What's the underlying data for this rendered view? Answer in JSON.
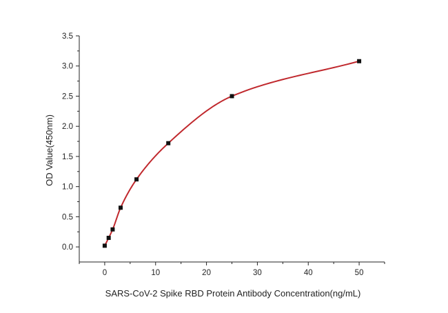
{
  "chart_data": {
    "type": "scatter",
    "xlabel": "SARS-CoV-2 Spike RBD Protein Antibody Concentration(ng/mL)",
    "ylabel": "OD Value(450nm)",
    "xlim": [
      -5,
      55
    ],
    "ylim": [
      -0.25,
      3.5
    ],
    "x_ticks": [
      0,
      10,
      20,
      30,
      40,
      50
    ],
    "y_ticks": [
      0.0,
      0.5,
      1.0,
      1.5,
      2.0,
      2.5,
      3.0,
      3.5
    ],
    "x_tick_labels": [
      "0",
      "10",
      "20",
      "30",
      "40",
      "50"
    ],
    "y_tick_labels": [
      "0.0",
      "0.5",
      "1.0",
      "1.5",
      "2.0",
      "2.5",
      "3.0",
      "3.5"
    ],
    "grid": false,
    "points": {
      "x": [
        0,
        0.78,
        1.56,
        3.125,
        6.25,
        12.5,
        25,
        50
      ],
      "y": [
        0.02,
        0.15,
        0.29,
        0.65,
        1.12,
        1.72,
        2.5,
        3.08
      ],
      "marker_color": "#111111"
    },
    "fit_curve": {
      "color": "#c0282d"
    }
  }
}
